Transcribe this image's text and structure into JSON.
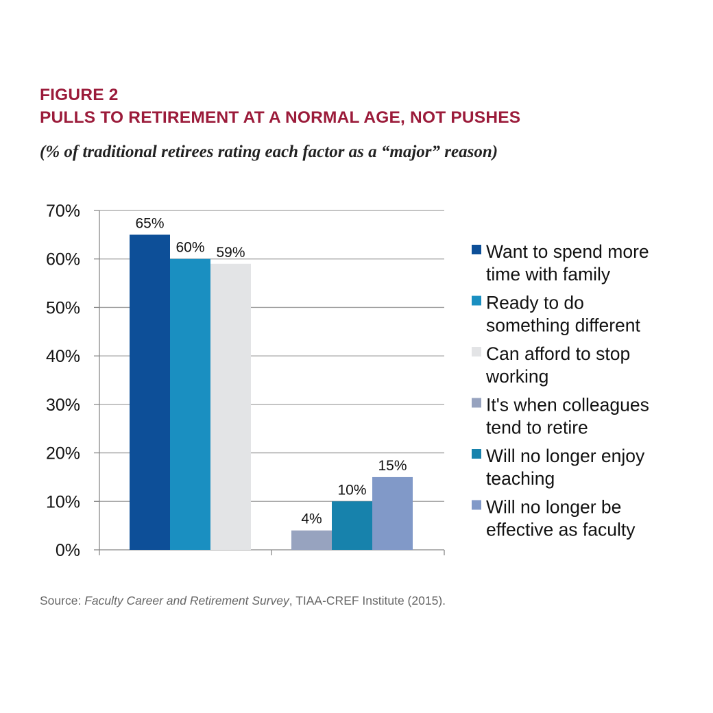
{
  "figure": {
    "label": "FIGURE 2",
    "title": "PULLS TO RETIREMENT AT A NORMAL AGE, NOT PUSHES",
    "subtitle": "(% of traditional retirees rating each factor as a “major” reason)"
  },
  "chart_data": {
    "type": "bar",
    "ylim": [
      0,
      70
    ],
    "yticks": [
      0,
      10,
      20,
      30,
      40,
      50,
      60,
      70
    ],
    "ytick_suffix": "%",
    "grid": true,
    "legend_position": "right",
    "groups": [
      {
        "series": [
          0,
          1,
          2
        ]
      },
      {
        "series": [
          3,
          4,
          5
        ]
      }
    ],
    "series": [
      {
        "name": "Want to spend more time with family",
        "legend_lines": [
          "Want to spend more",
          "time with family"
        ],
        "value": 65,
        "label": "65%",
        "color": "#0d4f98"
      },
      {
        "name": "Ready to do something different",
        "legend_lines": [
          "Ready to do",
          "something different"
        ],
        "value": 60,
        "label": "60%",
        "color": "#1a8fc1"
      },
      {
        "name": "Can afford to stop working",
        "legend_lines": [
          "Can afford to stop",
          "working"
        ],
        "value": 59,
        "label": "59%",
        "color": "#e3e4e6"
      },
      {
        "name": "It's when colleagues tend to retire",
        "legend_lines": [
          "It's when colleagues",
          "tend to retire"
        ],
        "value": 4,
        "label": "4%",
        "color": "#97a3bf"
      },
      {
        "name": "Will no longer enjoy teaching",
        "legend_lines": [
          "Will no longer enjoy",
          "teaching"
        ],
        "value": 10,
        "label": "10%",
        "color": "#1782ac"
      },
      {
        "name": "Will no longer be effective as faculty",
        "legend_lines": [
          "Will no longer be",
          "effective as faculty"
        ],
        "value": 15,
        "label": "15%",
        "color": "#8199c8"
      }
    ]
  },
  "source": {
    "prefix": "Source: ",
    "title": "Faculty Career and Retirement Survey",
    "suffix": ", TIAA-CREF Institute (2015)."
  }
}
